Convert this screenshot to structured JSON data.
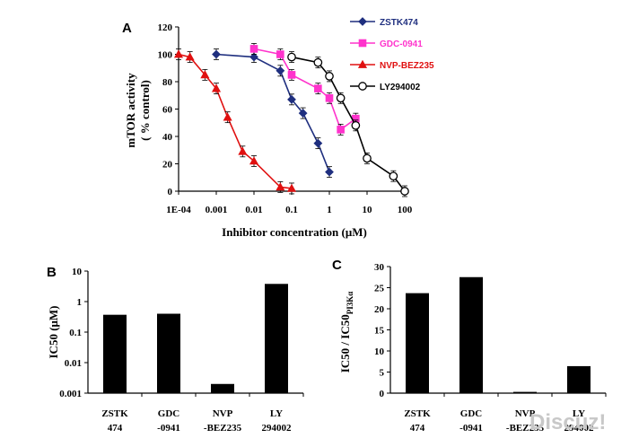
{
  "watermark": "Discuz!",
  "chart_data": [
    {
      "panel": "A",
      "type": "line",
      "xscale": "log",
      "xlabel": "Inhibitor concentration (μM)",
      "ylabel_line1": "mTOR activity",
      "ylabel_line2": "( % control)",
      "xlim": [
        0.0001,
        100
      ],
      "ylim": [
        0,
        120
      ],
      "xticks": [
        "1E-04",
        "0.001",
        "0.01",
        "0.1",
        "1",
        "10",
        "100"
      ],
      "yticks": [
        "0",
        "20",
        "40",
        "60",
        "80",
        "100",
        "120"
      ],
      "series": [
        {
          "name": "ZSTK474",
          "color": "#1f2f7f",
          "marker": "diamond",
          "x": [
            0.001,
            0.01,
            0.05,
            0.1,
            0.2,
            0.5,
            1
          ],
          "y": [
            100,
            98,
            88,
            67,
            57,
            35,
            14
          ]
        },
        {
          "name": "GDC-0941",
          "color": "#ff33cc",
          "marker": "square",
          "x": [
            0.01,
            0.05,
            0.1,
            0.5,
            1,
            2,
            5
          ],
          "y": [
            104,
            100,
            85,
            75,
            68,
            45,
            53
          ]
        },
        {
          "name": "NVP-BEZ235",
          "color": "#e01010",
          "marker": "triangle",
          "x": [
            0.0001,
            0.0002,
            0.0005,
            0.001,
            0.002,
            0.005,
            0.01,
            0.05,
            0.1
          ],
          "y": [
            100,
            98,
            85,
            75,
            54,
            29,
            22,
            3,
            2
          ]
        },
        {
          "name": "LY294002",
          "color": "#000000",
          "marker": "circle",
          "x": [
            0.1,
            0.5,
            1,
            2,
            5,
            10,
            50,
            100
          ],
          "y": [
            98,
            94,
            84,
            68,
            48,
            24,
            11,
            0
          ]
        }
      ]
    },
    {
      "panel": "B",
      "type": "bar",
      "yscale": "log",
      "ylabel": "IC50 (μM)",
      "ylim": [
        0.001,
        10
      ],
      "yticks": [
        "0.001",
        "0.01",
        "0.1",
        "1",
        "10"
      ],
      "categories": [
        [
          "ZSTK",
          "474"
        ],
        [
          "GDC",
          "-0941"
        ],
        [
          "NVP",
          "-BEZ235"
        ],
        [
          "LY",
          "294002"
        ]
      ],
      "values": [
        0.37,
        0.4,
        0.002,
        3.8
      ]
    },
    {
      "panel": "C",
      "type": "bar",
      "ylabel": "IC50 / IC50",
      "ylabel_sub": "PI3Kα",
      "ylim": [
        0,
        30
      ],
      "yticks": [
        "0",
        "5",
        "10",
        "15",
        "20",
        "25",
        "30"
      ],
      "categories": [
        [
          "ZSTK",
          "474"
        ],
        [
          "GDC",
          "-0941"
        ],
        [
          "NVP",
          "-BEZ235"
        ],
        [
          "LY",
          "294002"
        ]
      ],
      "values": [
        23.7,
        27.5,
        0.3,
        6.4
      ]
    }
  ]
}
